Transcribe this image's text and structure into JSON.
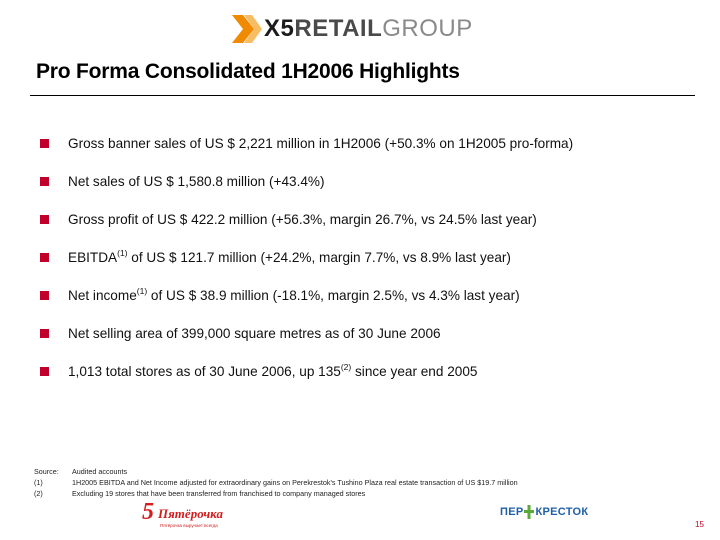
{
  "header": {
    "logo": {
      "part1": "X5",
      "part2": "RETAIL",
      "part3": "GROUP"
    }
  },
  "title": "Pro Forma Consolidated 1H2006 Highlights",
  "bullets": [
    {
      "pre": "Gross banner sales of US $ 2,221 million in 1H2006 (+50.3% on 1H2005 pro-forma)",
      "sup": "",
      "post": ""
    },
    {
      "pre": "Net sales of US $ 1,580.8 million (+43.4%)",
      "sup": "",
      "post": ""
    },
    {
      "pre": "Gross profit of US $ 422.2 million (+56.3%, margin 26.7%, vs 24.5% last year)",
      "sup": "",
      "post": ""
    },
    {
      "pre": "EBITDA",
      "sup": "(1)",
      "post": " of US $ 121.7 million (+24.2%, margin 7.7%, vs 8.9% last year)"
    },
    {
      "pre": "Net income",
      "sup": "(1)",
      "post": " of US $ 38.9 million (-18.1%, margin 2.5%, vs 4.3% last year)"
    },
    {
      "pre": "Net selling area of 399,000 square metres as of 30 June 2006",
      "sup": "",
      "post": ""
    },
    {
      "pre": "1,013 total stores as of 30 June 2006, up 135",
      "sup": "(2)",
      "post": " since year end 2005"
    }
  ],
  "footnotes": [
    {
      "tag": "Source:",
      "text": "Audited accounts"
    },
    {
      "tag": "(1)",
      "text": "1H2005 EBITDA and Net Income adjusted for extraordinary gains on Perekrestok's Tushino Plaza real estate transaction of US $19.7 million"
    },
    {
      "tag": "(2)",
      "text": "Excluding 19 stores that have been transferred from franchised to company managed stores"
    }
  ],
  "brand_logos": {
    "pyaterochka": {
      "number": "5",
      "name": "Пятёрочка",
      "tagline": "Пятёрочка выручает всегда"
    },
    "perekrestok": {
      "left": "ПЕР",
      "right": "КРЕСТОК"
    }
  },
  "page_number": "15",
  "colors": {
    "bullet": "#c0002a",
    "pyaterochka_red": "#d21e1e",
    "perekrestok_blue": "#1f5fa8"
  }
}
